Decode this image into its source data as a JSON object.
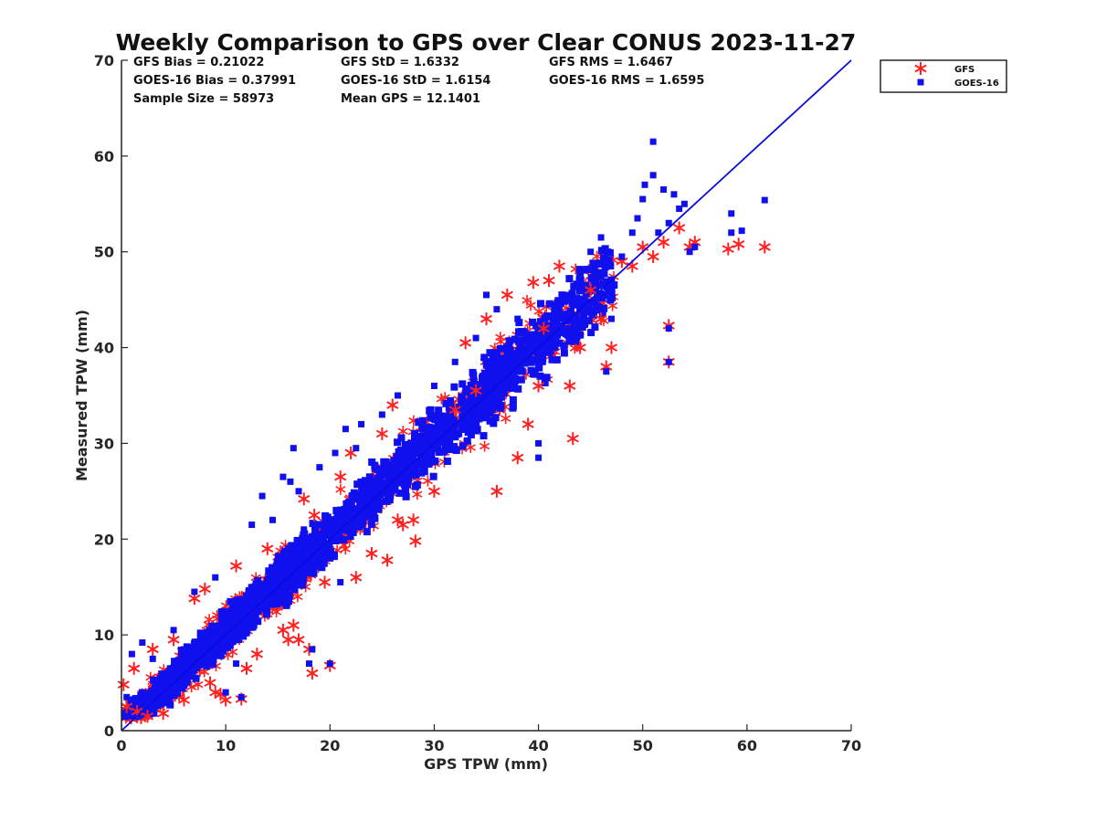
{
  "chart_data": {
    "type": "scatter",
    "title": "Weekly Comparison to GPS over Clear CONUS 2023-11-27",
    "xlabel": "GPS TPW (mm)",
    "ylabel": "Measured TPW (mm)",
    "xlim": [
      0,
      70
    ],
    "ylim": [
      0,
      70
    ],
    "xticks": [
      "0",
      "10",
      "20",
      "30",
      "40",
      "50",
      "60",
      "70"
    ],
    "yticks": [
      "0",
      "10",
      "20",
      "30",
      "40",
      "50",
      "60",
      "70"
    ],
    "grid": false,
    "legend_position": "outside-top-right",
    "stats": {
      "gfs_bias": "GFS Bias = 0.21022",
      "goes_bias": "GOES-16 Bias = 0.37991",
      "sample_size": "Sample Size = 58973",
      "gfs_std": "GFS StD = 1.6332",
      "goes_std": "GOES-16 StD = 1.6154",
      "mean_gps": "Mean GPS = 12.1401",
      "gfs_rms": "GFS RMS = 1.6467",
      "goes_rms": "GOES-16 RMS = 1.6595"
    },
    "series": [
      {
        "name": "GFS",
        "marker": "asterisk",
        "color": "#ff2020",
        "points": [
          [
            0.2,
            4.8
          ],
          [
            0.5,
            2.5
          ],
          [
            1.2,
            6.5
          ],
          [
            1.5,
            2.0
          ],
          [
            2.5,
            1.5
          ],
          [
            3.0,
            8.5
          ],
          [
            4.0,
            1.8
          ],
          [
            5.0,
            9.5
          ],
          [
            6.0,
            3.2
          ],
          [
            7.0,
            13.8
          ],
          [
            8.0,
            14.8
          ],
          [
            8.5,
            5.0
          ],
          [
            9.0,
            4.0
          ],
          [
            9.5,
            3.8
          ],
          [
            10.0,
            3.2
          ],
          [
            11.0,
            17.2
          ],
          [
            11.5,
            3.3
          ],
          [
            12.0,
            6.5
          ],
          [
            13.0,
            8.0
          ],
          [
            14.0,
            19.0
          ],
          [
            15.5,
            10.5
          ],
          [
            16.0,
            9.5
          ],
          [
            16.5,
            11.0
          ],
          [
            17.0,
            9.5
          ],
          [
            17.5,
            24.2
          ],
          [
            18.0,
            8.5
          ],
          [
            18.3,
            6.0
          ],
          [
            18.5,
            22.5
          ],
          [
            19.5,
            15.5
          ],
          [
            20.0,
            6.8
          ],
          [
            21.0,
            26.5
          ],
          [
            22.0,
            29.0
          ],
          [
            22.5,
            16.0
          ],
          [
            24.0,
            18.5
          ],
          [
            25.0,
            31.0
          ],
          [
            25.5,
            17.8
          ],
          [
            26.0,
            34.0
          ],
          [
            26.5,
            22.0
          ],
          [
            27.0,
            21.5
          ],
          [
            28.0,
            22.0
          ],
          [
            28.2,
            19.8
          ],
          [
            30.0,
            25.0
          ],
          [
            32.0,
            33.5
          ],
          [
            33.0,
            40.5
          ],
          [
            34.0,
            35.5
          ],
          [
            35.0,
            43.0
          ],
          [
            36.0,
            25.0
          ],
          [
            37.0,
            45.5
          ],
          [
            38.0,
            28.5
          ],
          [
            39.0,
            32.0
          ],
          [
            39.5,
            46.8
          ],
          [
            40.0,
            36.0
          ],
          [
            40.5,
            42.0
          ],
          [
            41.0,
            47.0
          ],
          [
            42.0,
            48.5
          ],
          [
            43.0,
            36.0
          ],
          [
            43.3,
            30.5
          ],
          [
            44.0,
            40.0
          ],
          [
            45.0,
            46.0
          ],
          [
            46.0,
            43.0
          ],
          [
            46.5,
            38.0
          ],
          [
            47.0,
            40.0
          ],
          [
            48.0,
            49.0
          ],
          [
            49.0,
            48.5
          ],
          [
            50.0,
            50.5
          ],
          [
            51.0,
            49.5
          ],
          [
            52.0,
            51.0
          ],
          [
            52.5,
            42.3
          ],
          [
            52.5,
            38.5
          ],
          [
            53.5,
            52.5
          ],
          [
            54.5,
            50.5
          ],
          [
            55.0,
            51.0
          ],
          [
            58.2,
            50.3
          ],
          [
            59.2,
            50.8
          ],
          [
            61.7,
            50.5
          ]
        ]
      },
      {
        "name": "GOES-16",
        "marker": "square",
        "color": "#1010ee",
        "points": [
          [
            0.5,
            3.5
          ],
          [
            1.0,
            8.0
          ],
          [
            2.0,
            9.2
          ],
          [
            3.0,
            7.5
          ],
          [
            5.0,
            10.5
          ],
          [
            7.0,
            14.5
          ],
          [
            9.0,
            16.0
          ],
          [
            10.0,
            4.0
          ],
          [
            11.5,
            3.5
          ],
          [
            12.5,
            21.5
          ],
          [
            13.5,
            24.5
          ],
          [
            14.5,
            22.0
          ],
          [
            15.5,
            26.5
          ],
          [
            16.2,
            26.0
          ],
          [
            16.5,
            29.5
          ],
          [
            17.0,
            25.0
          ],
          [
            17.5,
            21.0
          ],
          [
            18.0,
            7.0
          ],
          [
            18.3,
            8.5
          ],
          [
            19.0,
            27.5
          ],
          [
            20.0,
            7.0
          ],
          [
            20.5,
            29.0
          ],
          [
            21.5,
            31.5
          ],
          [
            22.5,
            29.5
          ],
          [
            23.0,
            32.0
          ],
          [
            25.0,
            33.0
          ],
          [
            26.5,
            35.0
          ],
          [
            28.0,
            28.5
          ],
          [
            30.0,
            36.0
          ],
          [
            32.0,
            38.5
          ],
          [
            34.0,
            41.0
          ],
          [
            35.0,
            45.5
          ],
          [
            36.0,
            44.0
          ],
          [
            38.0,
            43.0
          ],
          [
            40.0,
            28.5
          ],
          [
            42.0,
            44.0
          ],
          [
            44.0,
            46.0
          ],
          [
            45.0,
            50.0
          ],
          [
            46.0,
            51.5
          ],
          [
            47.0,
            43.0
          ],
          [
            48.0,
            49.5
          ],
          [
            49.0,
            52.0
          ],
          [
            49.5,
            53.5
          ],
          [
            50.0,
            55.5
          ],
          [
            50.2,
            57.0
          ],
          [
            51.0,
            58.0
          ],
          [
            51.5,
            52.0
          ],
          [
            52.0,
            56.5
          ],
          [
            52.5,
            53.0
          ],
          [
            53.0,
            56.0
          ],
          [
            53.5,
            54.5
          ],
          [
            54.0,
            55.0
          ],
          [
            54.5,
            50.0
          ],
          [
            55.0,
            50.5
          ],
          [
            58.5,
            54.0
          ],
          [
            58.5,
            52.0
          ],
          [
            59.5,
            52.2
          ],
          [
            61.7,
            55.4
          ],
          [
            52.5,
            42.0
          ],
          [
            52.5,
            38.5
          ],
          [
            51.0,
            61.5
          ],
          [
            46.5,
            37.5
          ],
          [
            40.0,
            30.0
          ],
          [
            21.0,
            15.5
          ],
          [
            11.0,
            7.0
          ]
        ]
      }
    ],
    "fit_line": {
      "name": "1:1 line",
      "color": "#0a0adc",
      "x": [
        0,
        70
      ],
      "y": [
        0,
        70
      ]
    }
  }
}
